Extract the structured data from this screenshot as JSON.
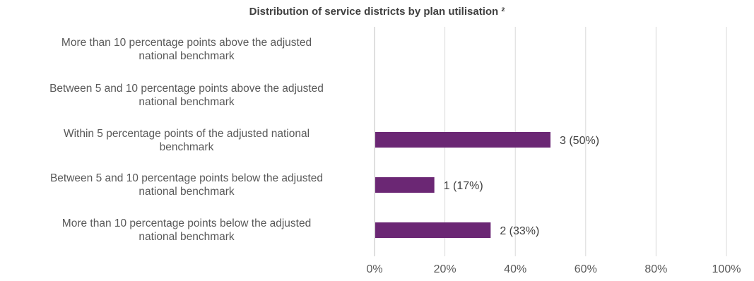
{
  "chart_data": {
    "type": "bar",
    "orientation": "horizontal",
    "title": "Distribution of service districts by plan utilisation ²",
    "categories": [
      "More than 10 percentage points above the adjusted national benchmark",
      "Between 5 and 10 percentage points above the adjusted national benchmark",
      "Within 5 percentage points of the adjusted national benchmark",
      "Between 5 and 10 percentage points below the adjusted national benchmark",
      "More than 10 percentage points below the adjusted national benchmark"
    ],
    "category_lines": [
      [
        "More than 10 percentage points above the adjusted",
        "national benchmark"
      ],
      [
        "Between 5 and 10 percentage points above the adjusted",
        "national benchmark"
      ],
      [
        "Within 5 percentage points of the adjusted national",
        "benchmark"
      ],
      [
        "Between 5 and 10 percentage points below the adjusted",
        "national benchmark"
      ],
      [
        "More than 10 percentage points below the adjusted",
        "national benchmark"
      ]
    ],
    "values": [
      0,
      0,
      50,
      17,
      33
    ],
    "data_labels": [
      "",
      "",
      "3 (50%)",
      "1 (17%)",
      "2 (33%)"
    ],
    "xlabel": "",
    "ylabel": "",
    "xlim": [
      0,
      100
    ],
    "x_ticks": [
      "0%",
      "20%",
      "40%",
      "60%",
      "80%",
      "100%"
    ],
    "grid": "vertical",
    "legend": "none",
    "bar_color": "#6B2774",
    "grid_color": "#D9D9D9"
  }
}
